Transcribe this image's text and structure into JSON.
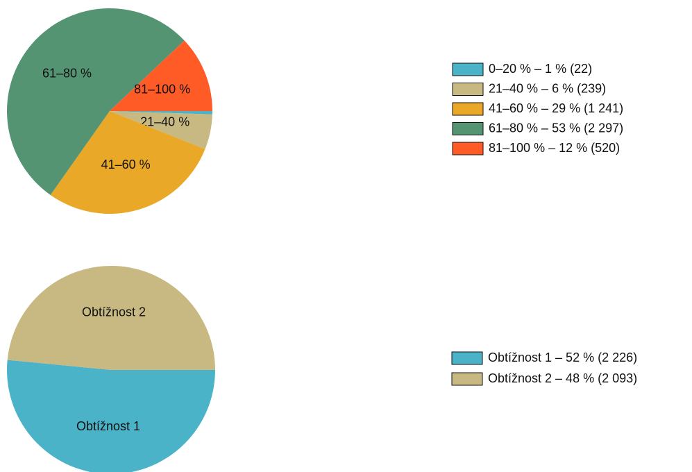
{
  "chart_data": [
    {
      "type": "pie",
      "categories": [
        null,
        "21–40 %",
        "41–60 %",
        "61–80 %",
        "81–100 %"
      ],
      "values": [
        22,
        239,
        1241,
        2297,
        520
      ],
      "colors": [
        "#4bb3c8",
        "#c8b882",
        "#e9a827",
        "#559473",
        "#fe5b27"
      ],
      "legend": [
        "0–20 % – 1 % (22)",
        "21–40 % – 6 % (239)",
        "41–60 % – 29 % (1 241)",
        "61–80 % – 53 % (2 297)",
        "81–100 % – 12 % (520)"
      ]
    },
    {
      "type": "pie",
      "categories": [
        "Obtížnost 1",
        "Obtížnost 2"
      ],
      "values": [
        2226,
        2093
      ],
      "colors": [
        "#4bb3c8",
        "#c8b882"
      ],
      "legend": [
        "Obtížnost 1 – 52 % (2 226)",
        "Obtížnost 2 – 48 % (2 093)"
      ]
    }
  ]
}
